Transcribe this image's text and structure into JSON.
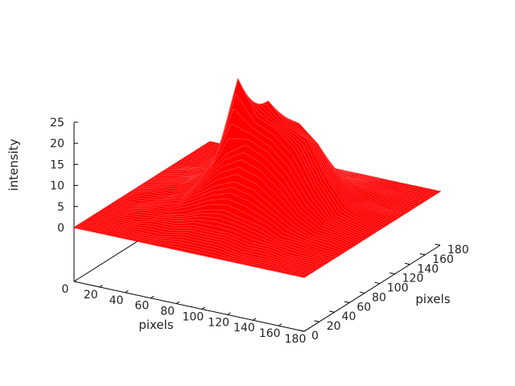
{
  "chart_data": {
    "type": "surface3d",
    "title": "",
    "xlabel": "pixels",
    "ylabel": "pixels",
    "zlabel": "intensity",
    "xlim": [
      0,
      180
    ],
    "ylim": [
      0,
      180
    ],
    "zlim": [
      0,
      25
    ],
    "x_ticks": [
      "0",
      "20",
      "40",
      "60",
      "80",
      "100",
      "120",
      "140",
      "160",
      "180"
    ],
    "y_ticks": [
      "0",
      "20",
      "40",
      "60",
      "80",
      "100",
      "120",
      "140",
      "160",
      "180"
    ],
    "z_ticks": [
      "0",
      "5",
      "10",
      "15",
      "20",
      "25"
    ],
    "color": "#ff0000",
    "grid_x": [
      0,
      15,
      30,
      45,
      60,
      75,
      90,
      105,
      120,
      135,
      150,
      165,
      180
    ],
    "grid_y": [
      0,
      15,
      30,
      45,
      60,
      75,
      90,
      105,
      120,
      135,
      150,
      165,
      180
    ],
    "z": [
      [
        0,
        0,
        0,
        0,
        0,
        0,
        0,
        0,
        0,
        0,
        0,
        0,
        0
      ],
      [
        0,
        0,
        0,
        0,
        0,
        1,
        1,
        1,
        0,
        0,
        0,
        0,
        0
      ],
      [
        0,
        0,
        0,
        1,
        1,
        2,
        2,
        2,
        1,
        1,
        0,
        0,
        0
      ],
      [
        0,
        0,
        1,
        1,
        2,
        4,
        5,
        4,
        3,
        1,
        1,
        0,
        0
      ],
      [
        0,
        0,
        1,
        2,
        5,
        8,
        10,
        9,
        6,
        3,
        1,
        1,
        0
      ],
      [
        0,
        1,
        1,
        3,
        8,
        14,
        17,
        15,
        11,
        5,
        2,
        1,
        0
      ],
      [
        0,
        1,
        2,
        4,
        12,
        30,
        22,
        20,
        16,
        8,
        2,
        1,
        0
      ],
      [
        0,
        1,
        2,
        5,
        14,
        21,
        24,
        19,
        17,
        9,
        3,
        1,
        0
      ],
      [
        0,
        1,
        1,
        4,
        10,
        16,
        19,
        18,
        14,
        7,
        2,
        1,
        0
      ],
      [
        0,
        0,
        1,
        2,
        6,
        11,
        13,
        12,
        8,
        4,
        1,
        0,
        0
      ],
      [
        0,
        0,
        1,
        1,
        3,
        5,
        6,
        5,
        3,
        2,
        1,
        0,
        0
      ],
      [
        0,
        0,
        0,
        1,
        1,
        2,
        2,
        2,
        1,
        1,
        0,
        0,
        0
      ],
      [
        0,
        0,
        0,
        0,
        0,
        0,
        0,
        0,
        0,
        0,
        0,
        0,
        0
      ]
    ]
  }
}
